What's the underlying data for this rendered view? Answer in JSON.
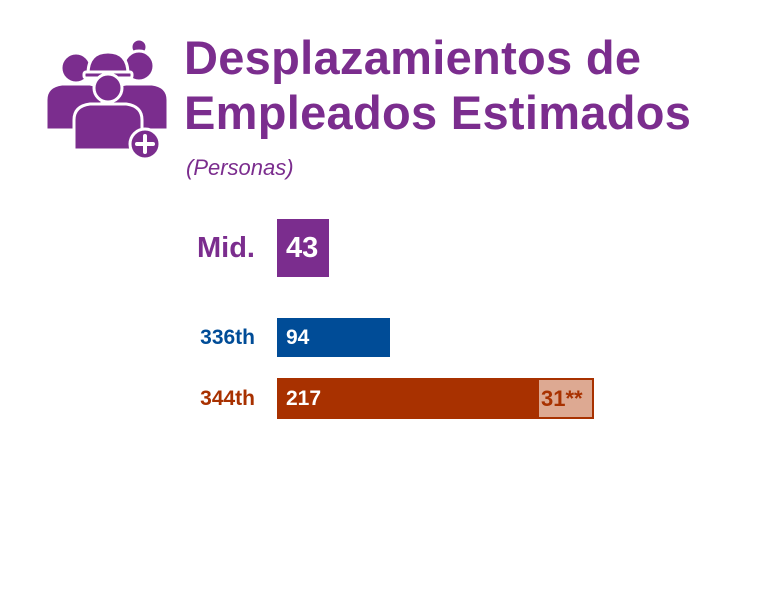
{
  "header": {
    "icon": "employees-group-plus-icon",
    "title_line1": "Desplazamientos de",
    "title_line2": "Empleados Estimados",
    "subtitle": "(Personas)"
  },
  "colors": {
    "purple": "#7b2d8e",
    "blue": "#004c97",
    "orange": "#a83100",
    "orange_light": "#dda992"
  },
  "chart_data": {
    "type": "bar",
    "orientation": "horizontal",
    "title": "Desplazamientos de Empleados Estimados",
    "subtitle": "(Personas)",
    "xlabel": "",
    "ylabel": "",
    "grid": false,
    "categories": [
      "Mid.",
      "336th",
      "344th"
    ],
    "series": [
      {
        "values": [
          43,
          94,
          217
        ]
      },
      {
        "values": [
          0,
          0,
          31
        ],
        "value_labels": [
          "",
          "",
          "31**"
        ]
      }
    ],
    "value_labels": [
      "43",
      "94",
      "217"
    ]
  }
}
